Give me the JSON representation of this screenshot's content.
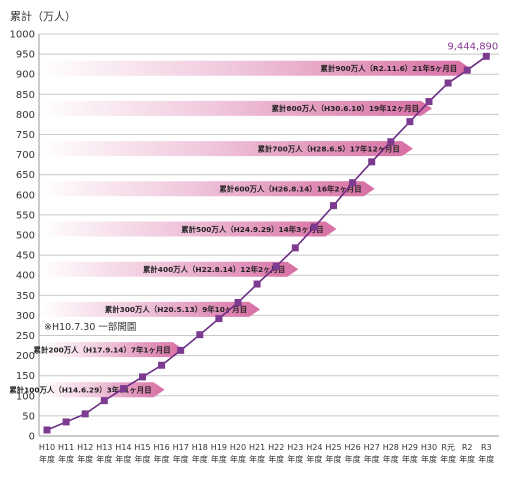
{
  "chart_data": {
    "type": "line",
    "ylabel": "累計（万人）",
    "ylim": [
      0,
      1000
    ],
    "yticks": [
      "0",
      "50",
      "100",
      "150",
      "200",
      "250",
      "300",
      "350",
      "400",
      "450",
      "500",
      "550",
      "600",
      "650",
      "700",
      "750",
      "800",
      "850",
      "900",
      "950",
      "1000"
    ],
    "categories": [
      [
        "H10",
        "年度"
      ],
      [
        "H11",
        "年度"
      ],
      [
        "H12",
        "年度"
      ],
      [
        "H13",
        "年度"
      ],
      [
        "H14",
        "年度"
      ],
      [
        "H15",
        "年度"
      ],
      [
        "H16",
        "年度"
      ],
      [
        "H17",
        "年度"
      ],
      [
        "H18",
        "年度"
      ],
      [
        "H19",
        "年度"
      ],
      [
        "H20",
        "年度"
      ],
      [
        "H21",
        "年度"
      ],
      [
        "H22",
        "年度"
      ],
      [
        "H23",
        "年度"
      ],
      [
        "H24",
        "年度"
      ],
      [
        "H25",
        "年度"
      ],
      [
        "H26",
        "年度"
      ],
      [
        "H27",
        "年度"
      ],
      [
        "H28",
        "年度"
      ],
      [
        "H29",
        "年度"
      ],
      [
        "H30",
        "年度"
      ],
      [
        "R元",
        "年度"
      ],
      [
        "R2",
        "年度"
      ],
      [
        "R3",
        "年度"
      ]
    ],
    "values": [
      15,
      35,
      55,
      88,
      118,
      147,
      176,
      213,
      252,
      292,
      332,
      378,
      422,
      468,
      520,
      573,
      630,
      682,
      732,
      782,
      832,
      878,
      910,
      944.489
    ],
    "end_label": "9,444,890",
    "milestones": [
      {
        "text": "累計100万人（H14.6.29）3年11ヶ月目",
        "value": 100,
        "end_index": 6
      },
      {
        "text": "累計200万人（H17.9.14）7年1ヶ月目",
        "value": 200,
        "end_index": 7
      },
      {
        "text": "累計300万人（H20.5.13）9年10ヶ月目",
        "value": 300,
        "end_index": 11
      },
      {
        "text": "累計400万人（H22.8.14）12年2ヶ月目",
        "value": 400,
        "end_index": 13
      },
      {
        "text": "累計500万人（H24.9.29）14年3ヶ月目",
        "value": 500,
        "end_index": 15
      },
      {
        "text": "累計600万人（H26.8.14）16年2ヶ月目",
        "value": 600,
        "end_index": 17
      },
      {
        "text": "累計700万人（H28.6.5）17年12ヶ月目",
        "value": 700,
        "end_index": 19
      },
      {
        "text": "累計800万人（H30.6.10）19年12ヶ月目",
        "value": 800,
        "end_index": 20
      },
      {
        "text": "累計900万人（R2.11.6）21年5ヶ月目",
        "value": 900,
        "end_index": 22
      }
    ],
    "annotation": "※H10.7.30 一部開園",
    "colors": {
      "line": "#6b2c82",
      "marker": "#7c3a91",
      "arrow": "#d97aa8",
      "endlabel": "#8a3a96"
    }
  }
}
